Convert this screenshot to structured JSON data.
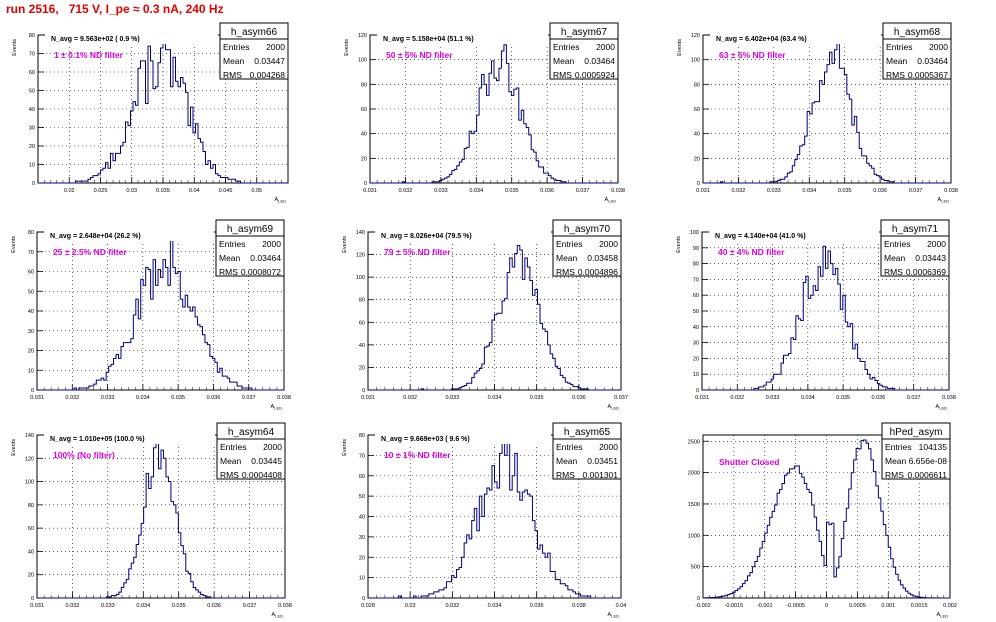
{
  "page_title": "run 2516,   715 V, I_pe ≈ 0.3 nA, 240 Hz",
  "colors": {
    "title": "#e00000",
    "histogram": "#000080",
    "annotation": "#e000e0"
  },
  "chart_data": [
    {
      "type": "histogram",
      "name": "h_asym66",
      "stats": {
        "entries": "2000",
        "mean": "0.03447",
        "rms": "0.004268"
      },
      "navg": "N_avg = 9.563e+02 ( 0.9 %)",
      "annotation": "1 ± 0.1% ND filter",
      "xlabel": "A_LED",
      "ylabel": "Events",
      "xlim": [
        0.015,
        0.055
      ],
      "ylim": [
        0,
        80
      ],
      "xticks": [
        0.02,
        0.025,
        0.03,
        0.035,
        0.04,
        0.045,
        0.05
      ],
      "xtick_labels": [
        "0.02",
        "0.025",
        "0.03",
        "0.035",
        "0.04",
        "0.045",
        "0.05"
      ],
      "yticks": [
        0,
        10,
        20,
        30,
        40,
        50,
        60,
        70,
        80
      ],
      "ytick_labels": [
        "0",
        "10",
        "20",
        "30",
        "40",
        "50",
        "60",
        "70",
        "80"
      ],
      "shape": {
        "kind": "gauss",
        "mean": 0.03447,
        "sigma": 0.004268,
        "peak": 66,
        "noise": 0.28
      }
    },
    {
      "type": "histogram",
      "name": "h_asym67",
      "stats": {
        "entries": "2000",
        "mean": "0.03464",
        "rms": "0.0005924"
      },
      "navg": "N_avg = 5.158e+04 (51.1 %)",
      "annotation": "50 ± 5% ND filter",
      "xlabel": "A_LED",
      "ylabel": "Events",
      "xlim": [
        0.031,
        0.038
      ],
      "ylim": [
        0,
        120
      ],
      "xticks": [
        0.031,
        0.032,
        0.033,
        0.034,
        0.035,
        0.036,
        0.037,
        0.038
      ],
      "xtick_labels": [
        "0.031",
        "0.032",
        "0.033",
        "0.034",
        "0.035",
        "0.036",
        "0.037",
        "0.038"
      ],
      "yticks": [
        0,
        20,
        40,
        60,
        80,
        100,
        120
      ],
      "ytick_labels": [
        "0",
        "20",
        "40",
        "60",
        "80",
        "100",
        "120"
      ],
      "shape": {
        "kind": "gauss",
        "mean": 0.03464,
        "sigma": 0.0005924,
        "peak": 98,
        "noise": 0.2
      }
    },
    {
      "type": "histogram",
      "name": "h_asym68",
      "stats": {
        "entries": "2000",
        "mean": "0.03464",
        "rms": "0.0005367"
      },
      "navg": "N_avg = 6.402e+04 (63.4 %)",
      "annotation": "63 ± 5% ND filter",
      "xlabel": "A_LED",
      "ylabel": "Events",
      "xlim": [
        0.031,
        0.038
      ],
      "ylim": [
        0,
        120
      ],
      "xticks": [
        0.031,
        0.032,
        0.033,
        0.034,
        0.035,
        0.036,
        0.037,
        0.038
      ],
      "xtick_labels": [
        "0.031",
        "0.032",
        "0.033",
        "0.034",
        "0.035",
        "0.036",
        "0.037",
        "0.038"
      ],
      "yticks": [
        0,
        20,
        40,
        60,
        80,
        100,
        120
      ],
      "ytick_labels": [
        "0",
        "20",
        "40",
        "60",
        "80",
        "100",
        "120"
      ],
      "shape": {
        "kind": "gauss",
        "mean": 0.03464,
        "sigma": 0.0005367,
        "peak": 105,
        "noise": 0.2
      }
    },
    {
      "type": "histogram",
      "name": "h_asym69",
      "stats": {
        "entries": "2000",
        "mean": "0.03464",
        "rms": "0.0008072"
      },
      "navg": "N_avg = 2.648e+04 (26.2 %)",
      "annotation": "25 ± 2.5% ND filter",
      "xlabel": "A_LED",
      "ylabel": "Events",
      "xlim": [
        0.031,
        0.038
      ],
      "ylim": [
        0,
        80
      ],
      "xticks": [
        0.031,
        0.032,
        0.033,
        0.034,
        0.035,
        0.036,
        0.037,
        0.038
      ],
      "xtick_labels": [
        "0.031",
        "0.032",
        "0.033",
        "0.034",
        "0.035",
        "0.036",
        "0.037",
        "0.038"
      ],
      "yticks": [
        0,
        10,
        20,
        30,
        40,
        50,
        60,
        70,
        80
      ],
      "ytick_labels": [
        "0",
        "10",
        "20",
        "30",
        "40",
        "50",
        "60",
        "70",
        "80"
      ],
      "shape": {
        "kind": "gauss",
        "mean": 0.03464,
        "sigma": 0.0008072,
        "peak": 66,
        "noise": 0.22
      }
    },
    {
      "type": "histogram",
      "name": "h_asym70",
      "stats": {
        "entries": "2000",
        "mean": "0.03458",
        "rms": "0.0004896"
      },
      "navg": "N_avg = 8.026e+04 (79.5 %)",
      "annotation": "79 ± 5% ND filter",
      "xlabel": "A_LED",
      "ylabel": "Events",
      "xlim": [
        0.031,
        0.037
      ],
      "ylim": [
        0,
        140
      ],
      "xticks": [
        0.031,
        0.032,
        0.033,
        0.034,
        0.035,
        0.036,
        0.037
      ],
      "xtick_labels": [
        "0.031",
        "0.032",
        "0.033",
        "0.034",
        "0.035",
        "0.036",
        "0.037"
      ],
      "yticks": [
        0,
        20,
        40,
        60,
        80,
        100,
        120,
        140
      ],
      "ytick_labels": [
        "0",
        "20",
        "40",
        "60",
        "80",
        "100",
        "120",
        "140"
      ],
      "shape": {
        "kind": "gauss",
        "mean": 0.03458,
        "sigma": 0.0004896,
        "peak": 120,
        "noise": 0.18
      }
    },
    {
      "type": "histogram",
      "name": "h_asym71",
      "stats": {
        "entries": "2000",
        "mean": "0.03443",
        "rms": "0.0006369"
      },
      "navg": "N_avg = 4.140e+04 (41.0 %)",
      "annotation": "40 ± 4% ND filter",
      "xlabel": "A_LED",
      "ylabel": "Events",
      "xlim": [
        0.031,
        0.038
      ],
      "ylim": [
        0,
        100
      ],
      "xticks": [
        0.031,
        0.032,
        0.033,
        0.034,
        0.035,
        0.036,
        0.037,
        0.038
      ],
      "xtick_labels": [
        "0.031",
        "0.032",
        "0.033",
        "0.034",
        "0.035",
        "0.036",
        "0.037",
        "0.038"
      ],
      "yticks": [
        0,
        10,
        20,
        30,
        40,
        50,
        60,
        70,
        80,
        90,
        100
      ],
      "ytick_labels": [
        "0",
        "10",
        "20",
        "30",
        "40",
        "50",
        "60",
        "70",
        "80",
        "90",
        "100"
      ],
      "shape": {
        "kind": "gauss",
        "mean": 0.03443,
        "sigma": 0.0006369,
        "peak": 82,
        "noise": 0.2
      }
    },
    {
      "type": "histogram",
      "name": "h_asym64",
      "stats": {
        "entries": "2000",
        "mean": "0.03445",
        "rms": "0.0004408"
      },
      "navg": "N_avg = 1.010e+05 (100.0 %)",
      "annotation": "100% (No filter)",
      "xlabel": "A_LED",
      "ylabel": "Events",
      "xlim": [
        0.031,
        0.038
      ],
      "ylim": [
        0,
        140
      ],
      "xticks": [
        0.031,
        0.032,
        0.033,
        0.034,
        0.035,
        0.036,
        0.037,
        0.038
      ],
      "xtick_labels": [
        "0.031",
        "0.032",
        "0.033",
        "0.034",
        "0.035",
        "0.036",
        "0.037",
        "0.038"
      ],
      "yticks": [
        0,
        20,
        40,
        60,
        80,
        100,
        120,
        140
      ],
      "ytick_labels": [
        "0",
        "20",
        "40",
        "60",
        "80",
        "100",
        "120",
        "140"
      ],
      "shape": {
        "kind": "gauss",
        "mean": 0.03445,
        "sigma": 0.0004408,
        "peak": 125,
        "noise": 0.15
      }
    },
    {
      "type": "histogram",
      "name": "h_asym65",
      "stats": {
        "entries": "2000",
        "mean": "0.03451",
        "rms": "0.001301"
      },
      "navg": "N_avg = 9.669e+03 ( 9.6 %)",
      "annotation": "10 ± 1% ND filter",
      "xlabel": "A_LED",
      "ylabel": "Events",
      "xlim": [
        0.028,
        0.04
      ],
      "ylim": [
        0,
        80
      ],
      "xticks": [
        0.028,
        0.03,
        0.032,
        0.034,
        0.036,
        0.038,
        0.04
      ],
      "xtick_labels": [
        "0.028",
        "0.03",
        "0.032",
        "0.034",
        "0.036",
        "0.038",
        "0.04"
      ],
      "yticks": [
        0,
        10,
        20,
        30,
        40,
        50,
        60,
        70,
        80
      ],
      "ytick_labels": [
        "0",
        "10",
        "20",
        "30",
        "40",
        "50",
        "60",
        "70",
        "80"
      ],
      "shape": {
        "kind": "gauss",
        "mean": 0.03451,
        "sigma": 0.001301,
        "peak": 66,
        "noise": 0.22
      }
    },
    {
      "type": "histogram",
      "name": "hPed_asym",
      "stats": {
        "entries": "104135",
        "mean": "6.656e-08",
        "rms": "0.0006611"
      },
      "navg": "",
      "annotation": "Shutter Closed",
      "xlabel": "A_LED",
      "ylabel": "",
      "xlim": [
        -0.002,
        0.002
      ],
      "ylim": [
        0,
        2600
      ],
      "xticks": [
        -0.002,
        -0.0015,
        -0.001,
        -0.0005,
        0,
        0.0005,
        0.001,
        0.0015,
        0.002
      ],
      "xtick_labels": [
        "-0.002",
        "-0.0015",
        "-0.001",
        "-0.0005",
        "0",
        "0.0005",
        "0.001",
        "0.0015",
        "0.002"
      ],
      "yticks": [
        0,
        500,
        1000,
        1500,
        2000,
        2500
      ],
      "ytick_labels": [
        "0",
        "500",
        "1000",
        "1500",
        "2000",
        "2500"
      ],
      "shape": {
        "kind": "double",
        "m1": -0.0005,
        "s1": 0.0004,
        "p1": 2080,
        "m2": 0.0006,
        "s2": 0.00028,
        "p2": 2480,
        "noise": 0.03
      }
    }
  ]
}
